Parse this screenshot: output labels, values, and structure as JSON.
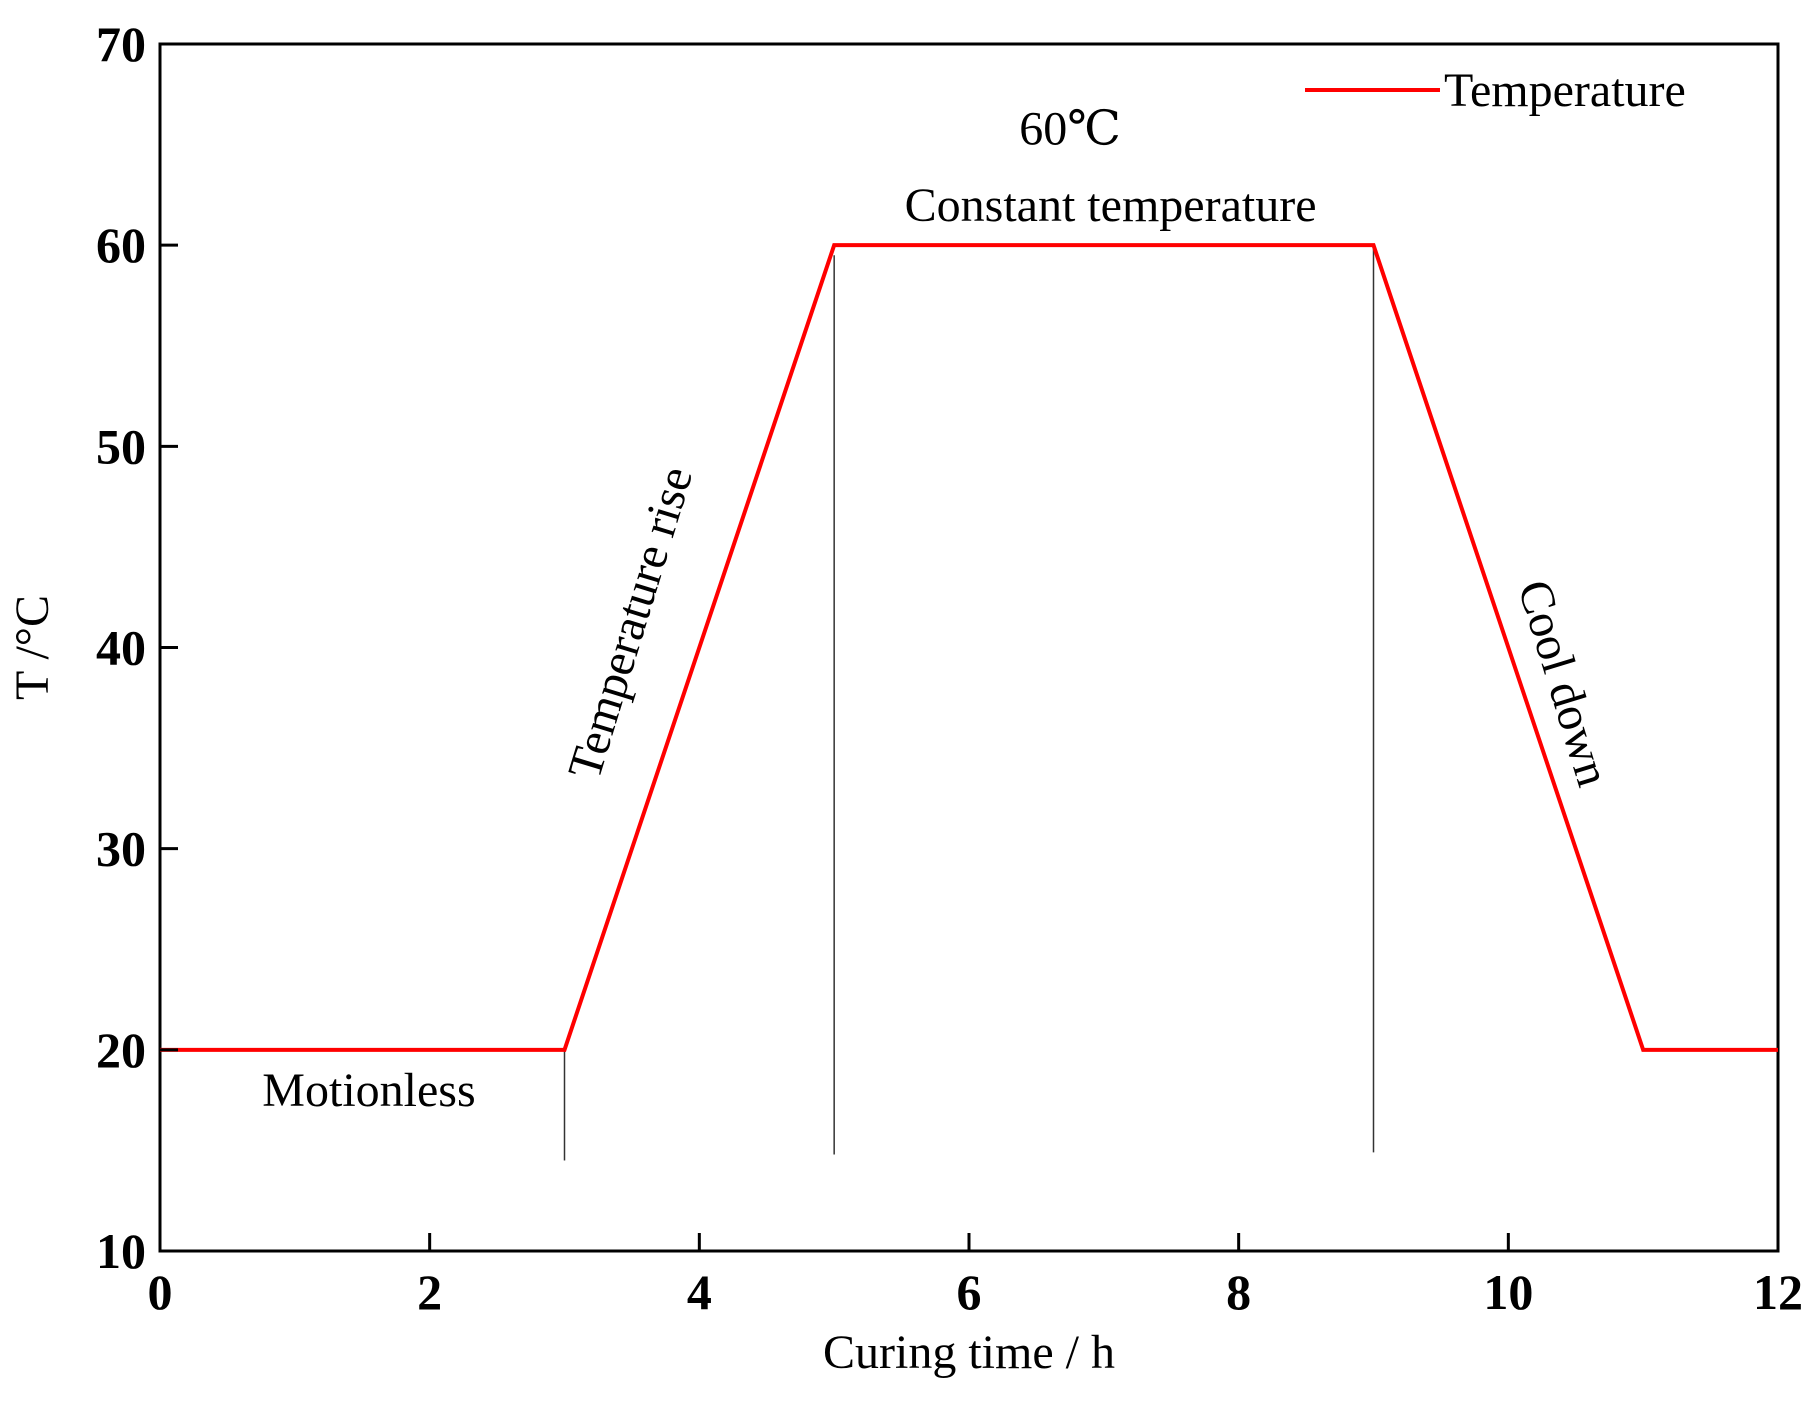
{
  "chart_data": {
    "type": "line",
    "xlabel": "Curing time / h",
    "ylabel": "T /°C",
    "xlim": [
      0,
      12
    ],
    "ylim": [
      10,
      70
    ],
    "xticks": [
      0,
      2,
      4,
      6,
      8,
      10,
      12
    ],
    "yticks": [
      10,
      20,
      30,
      40,
      50,
      60,
      70
    ],
    "grid": false,
    "legend": {
      "position": "top-right",
      "entries": [
        "Temperature"
      ]
    },
    "series": [
      {
        "name": "Temperature",
        "color": "#ff0000",
        "x": [
          0,
          3,
          5,
          9,
          11,
          12
        ],
        "y": [
          20,
          20,
          60,
          60,
          20,
          20
        ]
      }
    ],
    "phase_dividers": [
      {
        "x": 3,
        "y_from": 14.5,
        "y_to": 20
      },
      {
        "x": 5,
        "y_from": 14.8,
        "y_to": 59.5
      },
      {
        "x": 9,
        "y_from": 14.9,
        "y_to": 60
      }
    ],
    "annotations": [
      {
        "text": "60℃",
        "x": 6.75,
        "y": 65
      },
      {
        "text": "Constant temperature",
        "x": 7.05,
        "y": 61.2
      },
      {
        "text": "Motionless",
        "x": 1.55,
        "y": 17.2
      },
      {
        "text": "Temperature rise",
        "x": 3.6,
        "y": 41
      },
      {
        "text": "Cool down",
        "x": 10.3,
        "y": 38
      }
    ]
  }
}
